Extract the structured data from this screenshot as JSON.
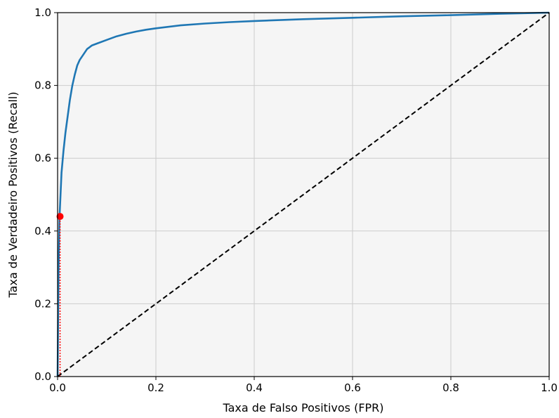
{
  "chart_data": {
    "type": "line",
    "title": "",
    "xlabel": "Taxa de Falso Positivos (FPR)",
    "ylabel": "Taxa de Verdadeiro Positivos (Recall)",
    "xlim": [
      0,
      1
    ],
    "ylim": [
      0,
      1
    ],
    "xticks": [
      "0.0",
      "0.2",
      "0.4",
      "0.6",
      "0.8",
      "1.0"
    ],
    "yticks": [
      "0.0",
      "0.2",
      "0.4",
      "0.6",
      "0.8",
      "1.0"
    ],
    "grid": true,
    "legend": "none",
    "series": [
      {
        "kind": "roc-curve",
        "color": "#1f77b4",
        "style": "solid",
        "x": [
          0,
          0.002,
          0.004,
          0.006,
          0.008,
          0.012,
          0.016,
          0.02,
          0.025,
          0.03,
          0.035,
          0.04,
          0.045,
          0.05,
          0.06,
          0.07,
          0.08,
          0.1,
          0.12,
          0.14,
          0.16,
          0.18,
          0.2,
          0.25,
          0.3,
          0.35,
          0.4,
          0.5,
          0.6,
          0.7,
          0.8,
          0.9,
          1.0
        ],
        "y": [
          0,
          0.3,
          0.44,
          0.5,
          0.56,
          0.62,
          0.67,
          0.71,
          0.76,
          0.8,
          0.83,
          0.855,
          0.87,
          0.88,
          0.9,
          0.91,
          0.915,
          0.925,
          0.935,
          0.942,
          0.948,
          0.953,
          0.957,
          0.965,
          0.97,
          0.974,
          0.977,
          0.982,
          0.986,
          0.99,
          0.993,
          0.997,
          1.0
        ]
      },
      {
        "kind": "random-baseline",
        "color": "#000000",
        "style": "dashed",
        "x": [
          0,
          1
        ],
        "y": [
          0,
          1
        ]
      }
    ],
    "annotations": [
      {
        "kind": "threshold-point",
        "x": 0.005,
        "y": 0.44,
        "color": "#ff0000"
      },
      {
        "kind": "dotted-guide-vertical",
        "x": 0.005,
        "y_from": 0,
        "y_to": 0.44,
        "color": "#ff0000"
      }
    ],
    "colors": {
      "plot_bg": "#f5f5f5",
      "grid": "#cccccc"
    }
  }
}
